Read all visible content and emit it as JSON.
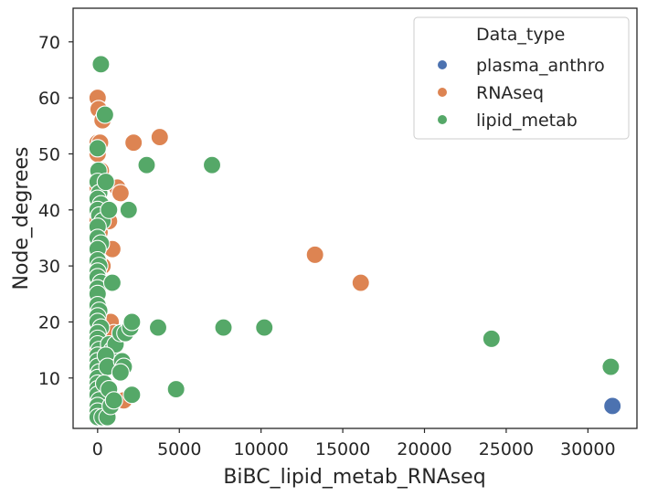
{
  "chart_data": {
    "type": "scatter",
    "xlabel": "BiBC_lipid_metab_RNAseq",
    "ylabel": "Node_degrees",
    "xlim": [
      -1500,
      33000
    ],
    "ylim": [
      1,
      76
    ],
    "xticks": [
      0,
      5000,
      10000,
      15000,
      20000,
      25000,
      30000
    ],
    "yticks": [
      10,
      20,
      30,
      40,
      50,
      60,
      70
    ],
    "grid": false,
    "legend": {
      "title": "Data_type",
      "placement": "top-right"
    },
    "series": [
      {
        "name": "plasma_anthro",
        "color": "#4c72b0",
        "points": [
          [
            31500,
            5
          ]
        ]
      },
      {
        "name": "RNAseq",
        "color": "#dd8452",
        "points": [
          [
            0,
            60
          ],
          [
            0,
            52
          ],
          [
            0,
            50
          ],
          [
            0,
            47
          ],
          [
            0,
            44
          ],
          [
            0,
            40
          ],
          [
            0,
            38
          ],
          [
            0,
            33
          ],
          [
            0,
            29
          ],
          [
            0,
            25
          ],
          [
            0,
            20
          ],
          [
            0,
            15
          ],
          [
            0,
            10
          ],
          [
            0,
            5
          ],
          [
            60,
            58
          ],
          [
            150,
            52
          ],
          [
            300,
            56
          ],
          [
            200,
            47
          ],
          [
            100,
            42
          ],
          [
            120,
            36
          ],
          [
            400,
            45
          ],
          [
            500,
            40
          ],
          [
            700,
            38
          ],
          [
            900,
            33
          ],
          [
            800,
            20
          ],
          [
            1200,
            44
          ],
          [
            1400,
            43
          ],
          [
            1600,
            6
          ],
          [
            1000,
            18
          ],
          [
            300,
            30
          ],
          [
            2200,
            52
          ],
          [
            3800,
            53
          ],
          [
            13300,
            32
          ],
          [
            16100,
            27
          ]
        ]
      },
      {
        "name": "lipid_metab",
        "color": "#55a868",
        "points": [
          [
            200,
            66
          ],
          [
            450,
            57
          ],
          [
            0,
            51
          ],
          [
            50,
            47
          ],
          [
            0,
            45
          ],
          [
            100,
            43
          ],
          [
            0,
            42
          ],
          [
            200,
            41
          ],
          [
            0,
            40
          ],
          [
            100,
            39
          ],
          [
            300,
            38
          ],
          [
            0,
            37
          ],
          [
            0,
            35
          ],
          [
            200,
            34
          ],
          [
            0,
            33
          ],
          [
            0,
            31
          ],
          [
            100,
            30
          ],
          [
            0,
            29
          ],
          [
            0,
            28
          ],
          [
            200,
            27
          ],
          [
            0,
            26
          ],
          [
            0,
            25
          ],
          [
            0,
            23
          ],
          [
            100,
            22
          ],
          [
            0,
            21
          ],
          [
            0,
            20
          ],
          [
            200,
            19
          ],
          [
            0,
            18
          ],
          [
            0,
            17
          ],
          [
            0,
            16
          ],
          [
            100,
            15
          ],
          [
            0,
            14
          ],
          [
            0,
            13
          ],
          [
            0,
            12
          ],
          [
            100,
            11
          ],
          [
            0,
            10
          ],
          [
            0,
            9
          ],
          [
            0,
            8
          ],
          [
            0,
            7
          ],
          [
            100,
            6
          ],
          [
            0,
            5
          ],
          [
            0,
            4
          ],
          [
            0,
            3
          ],
          [
            300,
            3
          ],
          [
            600,
            3
          ],
          [
            500,
            45
          ],
          [
            700,
            40
          ],
          [
            1900,
            40
          ],
          [
            900,
            27
          ],
          [
            700,
            16
          ],
          [
            900,
            15
          ],
          [
            1100,
            16
          ],
          [
            500,
            14
          ],
          [
            600,
            12
          ],
          [
            400,
            9
          ],
          [
            700,
            8
          ],
          [
            800,
            5
          ],
          [
            1000,
            6
          ],
          [
            1400,
            18
          ],
          [
            1700,
            18
          ],
          [
            1500,
            13
          ],
          [
            1600,
            12
          ],
          [
            1400,
            11
          ],
          [
            2000,
            19
          ],
          [
            2100,
            20
          ],
          [
            2100,
            7
          ],
          [
            3000,
            48
          ],
          [
            7000,
            48
          ],
          [
            3700,
            19
          ],
          [
            7700,
            19
          ],
          [
            10200,
            19
          ],
          [
            4800,
            8
          ],
          [
            24100,
            17
          ],
          [
            31400,
            12
          ]
        ]
      }
    ]
  }
}
